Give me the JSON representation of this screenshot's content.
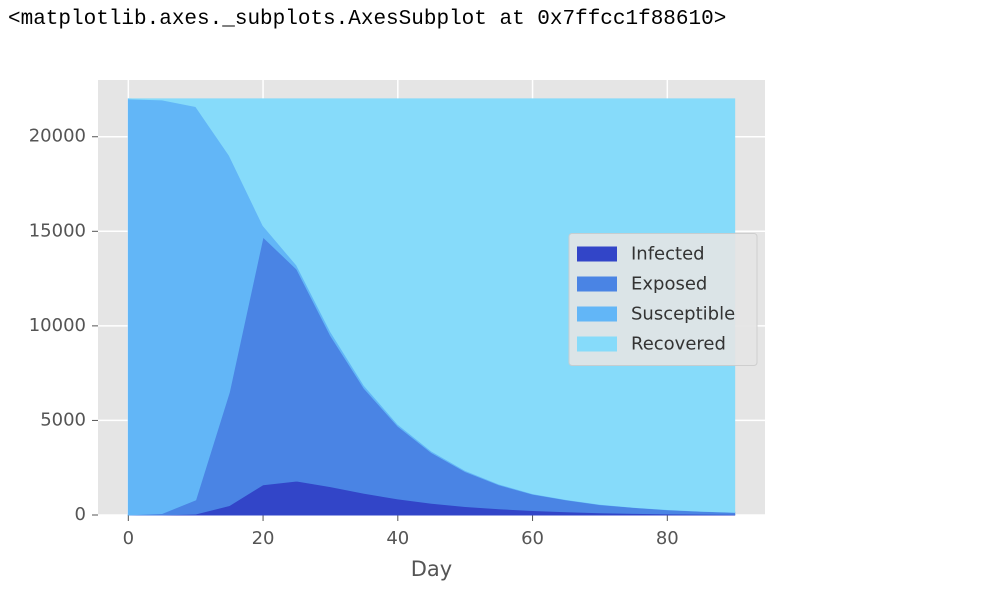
{
  "output_text": "<matplotlib.axes._subplots.AxesSubplot at 0x7ffcc1f88610>",
  "chart_data": {
    "type": "stacked-area",
    "xlabel": "Day",
    "x": [
      0,
      5,
      10,
      15,
      20,
      25,
      30,
      35,
      40,
      45,
      50,
      55,
      60,
      65,
      70,
      75,
      80,
      85,
      90
    ],
    "series": [
      {
        "name": "Infected",
        "color": "#3245c8",
        "values": [
          0,
          5,
          50,
          500,
          1600,
          1800,
          1500,
          1150,
          850,
          620,
          450,
          330,
          240,
          170,
          120,
          85,
          60,
          45,
          30
        ]
      },
      {
        "name": "Exposed",
        "color": "#4a84e4",
        "values": [
          10,
          75,
          750,
          6000,
          13100,
          11200,
          8000,
          5550,
          3850,
          2680,
          1850,
          1270,
          860,
          630,
          430,
          315,
          220,
          155,
          110
        ]
      },
      {
        "name": "Susceptible",
        "color": "#62b6f7",
        "values": [
          21990,
          21870,
          20800,
          12500,
          600,
          200,
          200,
          150,
          100,
          80,
          60,
          40,
          30,
          20,
          15,
          10,
          10,
          8,
          6
        ]
      },
      {
        "name": "Recovered",
        "color": "#86dbfa",
        "values": [
          0,
          50,
          400,
          3000,
          6700,
          8800,
          12300,
          15150,
          17200,
          18620,
          19640,
          20360,
          20870,
          21180,
          21435,
          21590,
          21710,
          21792,
          21854
        ]
      }
    ],
    "xlim": [
      -4.5,
      94.5
    ],
    "xticks": [
      0,
      20,
      40,
      60,
      80
    ],
    "ylim": [
      0,
      23000
    ],
    "yticks": [
      0,
      5000,
      10000,
      15000,
      20000
    ],
    "grid": true,
    "legend_position": "center right"
  }
}
